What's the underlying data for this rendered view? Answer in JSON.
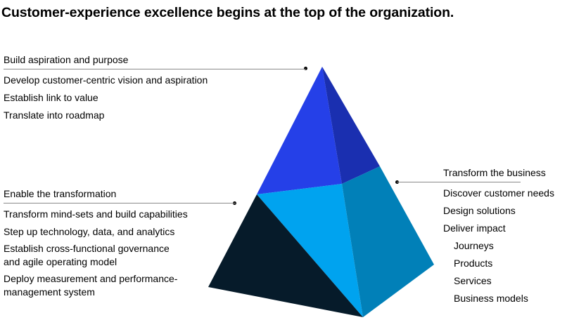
{
  "title": "Customer-experience excellence begins at the top of the organization.",
  "colors": {
    "top_left_face": "#2540e8",
    "top_right_face": "#1a2fb0",
    "middle_front_face": "#00a3ef",
    "right_face": "#0180b8",
    "bottom_left_face": "#061b2a",
    "leader_line": "#8a8a8a"
  },
  "sections": {
    "top": {
      "heading": "Build aspiration and purpose",
      "items": [
        "Develop customer-centric vision and aspiration",
        "Establish link to value",
        "Translate into roadmap"
      ]
    },
    "left": {
      "heading": "Enable the transformation",
      "items": [
        "Transform mind-sets and build capabilities",
        "Step up technology, data, and analytics",
        "Establish cross-functional governance",
        "and agile operating model",
        "Deploy measurement and performance-",
        "management system"
      ]
    },
    "right": {
      "heading": "Transform the business",
      "items": [
        "Discover customer needs",
        "Design solutions",
        "Deliver impact"
      ],
      "subitems": [
        "Journeys",
        "Products",
        "Services",
        "Business models"
      ]
    }
  }
}
